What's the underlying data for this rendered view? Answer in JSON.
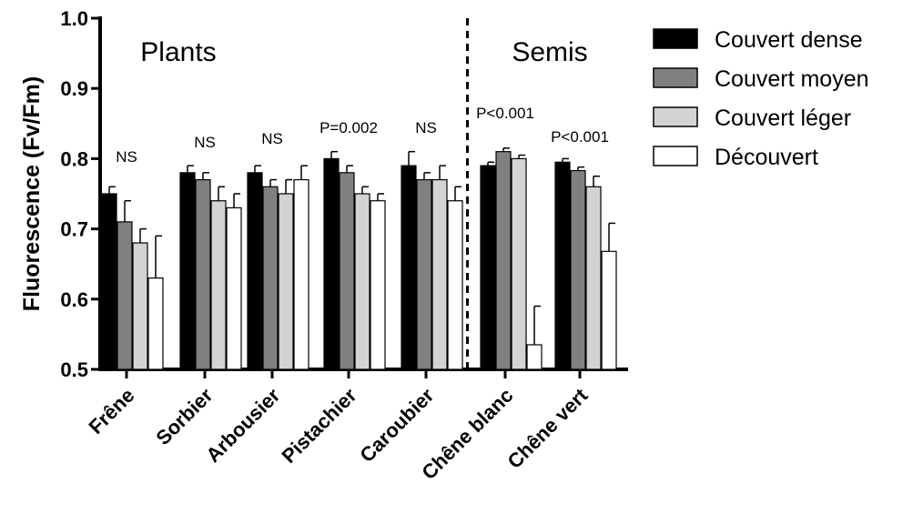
{
  "chart_data": {
    "type": "bar",
    "ylabel": "Fluorescence (Fv/Fm)",
    "ylim": [
      0.5,
      1.0
    ],
    "yticks": [
      "0.5",
      "0.6",
      "0.7",
      "0.8",
      "0.9",
      "1.0"
    ],
    "categories": [
      "Frêne",
      "Sorbier",
      "Arbousier",
      "Pistachier",
      "Caroubier",
      "Chêne blanc",
      "Chêne vert"
    ],
    "series": [
      {
        "name": "Couvert dense",
        "color": "#000000",
        "values": [
          0.75,
          0.78,
          0.78,
          0.8,
          0.79,
          0.79,
          0.795
        ],
        "errors": [
          0.01,
          0.01,
          0.01,
          0.01,
          0.02,
          0.005,
          0.005
        ]
      },
      {
        "name": "Couvert moyen",
        "color": "#808080",
        "values": [
          0.71,
          0.77,
          0.76,
          0.78,
          0.77,
          0.81,
          0.783
        ],
        "errors": [
          0.03,
          0.01,
          0.01,
          0.01,
          0.01,
          0.005,
          0.005
        ]
      },
      {
        "name": "Couvert léger",
        "color": "#d3d3d3",
        "values": [
          0.68,
          0.74,
          0.75,
          0.75,
          0.77,
          0.8,
          0.76
        ],
        "errors": [
          0.02,
          0.02,
          0.02,
          0.01,
          0.02,
          0.005,
          0.015
        ]
      },
      {
        "name": "Découvert",
        "color": "#ffffff",
        "values": [
          0.63,
          0.73,
          0.77,
          0.74,
          0.74,
          0.535,
          0.668
        ],
        "errors": [
          0.06,
          0.02,
          0.02,
          0.01,
          0.02,
          0.055,
          0.04
        ]
      }
    ],
    "annotations": [
      "NS",
      "NS",
      "NS",
      "P=0.002",
      "NS",
      "P<0.001",
      "P<0.001"
    ],
    "group_labels": {
      "left": "Plants",
      "right": "Semis"
    },
    "divider_after_category": 4,
    "legend_position": "right",
    "grid": false
  }
}
